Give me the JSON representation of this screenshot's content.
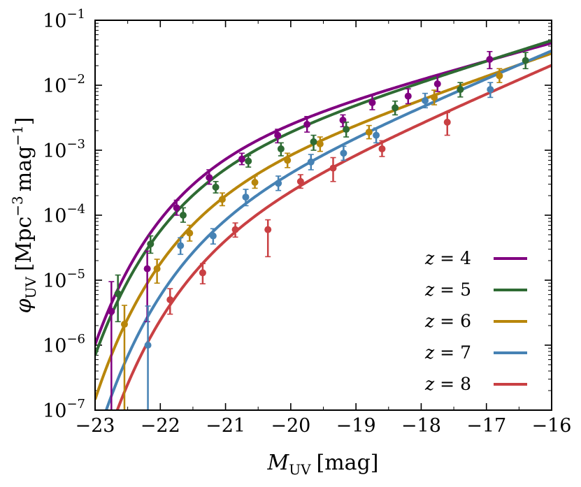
{
  "chart_data": {
    "type": "line",
    "title": "",
    "xlabel": "M_UV [mag]",
    "xlabel_main": "M",
    "xlabel_sub": "UV",
    "xlabel_unit": "[mag]",
    "ylabel": "φ_UV [Mpc^-3 mag^-1]",
    "ylabel_main": "φ",
    "ylabel_sub": "UV",
    "ylabel_unit_a": "[Mpc",
    "ylabel_unit_a_sup": "−3",
    "ylabel_unit_b": "mag",
    "ylabel_unit_b_sup": "−1",
    "ylabel_unit_close": "]",
    "xlim": [
      -23,
      -16
    ],
    "ylim": [
      1e-07,
      0.1
    ],
    "yscale": "log",
    "xticks": [
      -23,
      -22,
      -21,
      -20,
      -19,
      -18,
      -17,
      -16
    ],
    "xtick_labels": [
      "−23",
      "−22",
      "−21",
      "−20",
      "−19",
      "−18",
      "−17",
      "−16"
    ],
    "yticks": [
      -7,
      -6,
      -5,
      -4,
      -3,
      -2,
      -1
    ],
    "ytick_base": "10",
    "ytick_exponents": [
      "−7",
      "−6",
      "−5",
      "−4",
      "−3",
      "−2",
      "−1"
    ],
    "legend_position": "lower-right",
    "series": [
      {
        "name": "z = 4",
        "z_label": "z",
        "z_value": "= 4",
        "color": "#800080",
        "schechter": {
          "phi_star": 0.00214,
          "m_star": -21.0,
          "alpha": -1.68
        },
        "points": [
          {
            "x": -22.75,
            "y": 3.3e-06,
            "lo": 1e-07,
            "hi": 9.5e-06
          },
          {
            "x": -22.2,
            "y": 1.5e-05,
            "lo": 2.3e-06,
            "hi": 2.8e-05
          },
          {
            "x": -21.75,
            "y": 0.00013,
            "lo": 0.0001,
            "hi": 0.00017
          },
          {
            "x": -21.25,
            "y": 0.00038,
            "lo": 0.0003,
            "hi": 0.0005
          },
          {
            "x": -20.75,
            "y": 0.00073,
            "lo": 0.0006,
            "hi": 0.0009
          },
          {
            "x": -20.2,
            "y": 0.0017,
            "lo": 0.0013,
            "hi": 0.0021
          },
          {
            "x": -19.75,
            "y": 0.0025,
            "lo": 0.0019,
            "hi": 0.0033
          },
          {
            "x": -19.2,
            "y": 0.0029,
            "lo": 0.0023,
            "hi": 0.0035
          },
          {
            "x": -18.75,
            "y": 0.0054,
            "lo": 0.0042,
            "hi": 0.007
          },
          {
            "x": -18.2,
            "y": 0.0068,
            "lo": 0.0052,
            "hi": 0.0088
          },
          {
            "x": -17.75,
            "y": 0.0105,
            "lo": 0.008,
            "hi": 0.014
          },
          {
            "x": -16.95,
            "y": 0.025,
            "lo": 0.018,
            "hi": 0.033
          }
        ]
      },
      {
        "name": "z = 5",
        "z_label": "z",
        "z_value": "= 5",
        "color": "#2e6b33",
        "schechter": {
          "phi_star": 0.00144,
          "m_star": -21.03,
          "alpha": -1.78
        },
        "points": [
          {
            "x": -22.65,
            "y": 6.2e-06,
            "lo": 2.3e-06,
            "hi": 1.2e-05
          },
          {
            "x": -22.15,
            "y": 3.6e-05,
            "lo": 2.6e-05,
            "hi": 4.8e-05
          },
          {
            "x": -21.65,
            "y": 0.0001,
            "lo": 7.8e-05,
            "hi": 0.00013
          },
          {
            "x": -21.15,
            "y": 0.00027,
            "lo": 0.00022,
            "hi": 0.00033
          },
          {
            "x": -20.65,
            "y": 0.00068,
            "lo": 0.00055,
            "hi": 0.00083
          },
          {
            "x": -20.15,
            "y": 0.00105,
            "lo": 0.00082,
            "hi": 0.0013
          },
          {
            "x": -19.65,
            "y": 0.00135,
            "lo": 0.001,
            "hi": 0.0017
          },
          {
            "x": -19.15,
            "y": 0.0021,
            "lo": 0.0016,
            "hi": 0.0027
          },
          {
            "x": -18.4,
            "y": 0.0045,
            "lo": 0.0035,
            "hi": 0.0057
          },
          {
            "x": -17.4,
            "y": 0.0086,
            "lo": 0.0066,
            "hi": 0.011
          },
          {
            "x": -16.4,
            "y": 0.024,
            "lo": 0.018,
            "hi": 0.032
          }
        ]
      },
      {
        "name": "z = 6",
        "z_label": "z",
        "z_value": "= 6",
        "color": "#b8860b",
        "schechter": {
          "phi_star": 0.00065,
          "m_star": -20.94,
          "alpha": -1.87
        },
        "points": [
          {
            "x": -22.55,
            "y": 2.1e-06,
            "lo": 1e-07,
            "hi": 4.1e-06
          },
          {
            "x": -22.05,
            "y": 1.5e-05,
            "lo": 9e-06,
            "hi": 2.1e-05
          },
          {
            "x": -21.55,
            "y": 5.3e-05,
            "lo": 4e-05,
            "hi": 7e-05
          },
          {
            "x": -21.05,
            "y": 0.000175,
            "lo": 0.00014,
            "hi": 0.00022
          },
          {
            "x": -20.55,
            "y": 0.00032,
            "lo": 0.00026,
            "hi": 0.0004
          },
          {
            "x": -20.05,
            "y": 0.0007,
            "lo": 0.00054,
            "hi": 0.0009
          },
          {
            "x": -19.55,
            "y": 0.00125,
            "lo": 0.00096,
            "hi": 0.0016
          },
          {
            "x": -18.8,
            "y": 0.0019,
            "lo": 0.0015,
            "hi": 0.0024
          },
          {
            "x": -17.8,
            "y": 0.0065,
            "lo": 0.005,
            "hi": 0.0084
          },
          {
            "x": -16.8,
            "y": 0.014,
            "lo": 0.011,
            "hi": 0.018
          }
        ]
      },
      {
        "name": "z = 7",
        "z_label": "z",
        "z_value": "= 7",
        "color": "#4682b4",
        "schechter": {
          "phi_star": 0.00032,
          "m_star": -20.87,
          "alpha": -2.06
        },
        "points": [
          {
            "x": -22.19,
            "y": 1e-06,
            "lo": 1e-07,
            "hi": 4e-06
          },
          {
            "x": -21.69,
            "y": 3.4e-05,
            "lo": 2.5e-05,
            "hi": 4.5e-05
          },
          {
            "x": -21.19,
            "y": 4.8e-05,
            "lo": 3.6e-05,
            "hi": 6.2e-05
          },
          {
            "x": -20.69,
            "y": 0.00019,
            "lo": 0.00014,
            "hi": 0.00025
          },
          {
            "x": -20.19,
            "y": 0.00031,
            "lo": 0.00024,
            "hi": 0.0004
          },
          {
            "x": -19.69,
            "y": 0.00066,
            "lo": 0.0005,
            "hi": 0.00086
          },
          {
            "x": -19.19,
            "y": 0.0009,
            "lo": 0.0007,
            "hi": 0.00115
          },
          {
            "x": -18.69,
            "y": 0.0017,
            "lo": 0.0013,
            "hi": 0.0022
          },
          {
            "x": -17.94,
            "y": 0.0058,
            "lo": 0.0045,
            "hi": 0.0075
          },
          {
            "x": -16.94,
            "y": 0.0086,
            "lo": 0.0065,
            "hi": 0.011
          }
        ]
      },
      {
        "name": "z = 8",
        "z_label": "z",
        "z_value": "= 8",
        "color": "#c94043",
        "schechter": {
          "phi_star": 0.00018,
          "m_star": -20.8,
          "alpha": -2.09
        },
        "points": [
          {
            "x": -21.85,
            "y": 5e-06,
            "lo": 3e-06,
            "hi": 7.4e-06
          },
          {
            "x": -21.35,
            "y": 1.3e-05,
            "lo": 8.8e-06,
            "hi": 1.8e-05
          },
          {
            "x": -20.85,
            "y": 6e-05,
            "lo": 4.6e-05,
            "hi": 7.6e-05
          },
          {
            "x": -20.35,
            "y": 6e-05,
            "lo": 2.3e-05,
            "hi": 8.5e-05
          },
          {
            "x": -19.85,
            "y": 0.00033,
            "lo": 0.00026,
            "hi": 0.00042
          },
          {
            "x": -19.35,
            "y": 0.00053,
            "lo": 0.00033,
            "hi": 0.00077
          },
          {
            "x": -18.6,
            "y": 0.00105,
            "lo": 0.0008,
            "hi": 0.0014
          },
          {
            "x": -17.6,
            "y": 0.0027,
            "lo": 0.0017,
            "hi": 0.0038
          }
        ]
      }
    ]
  }
}
